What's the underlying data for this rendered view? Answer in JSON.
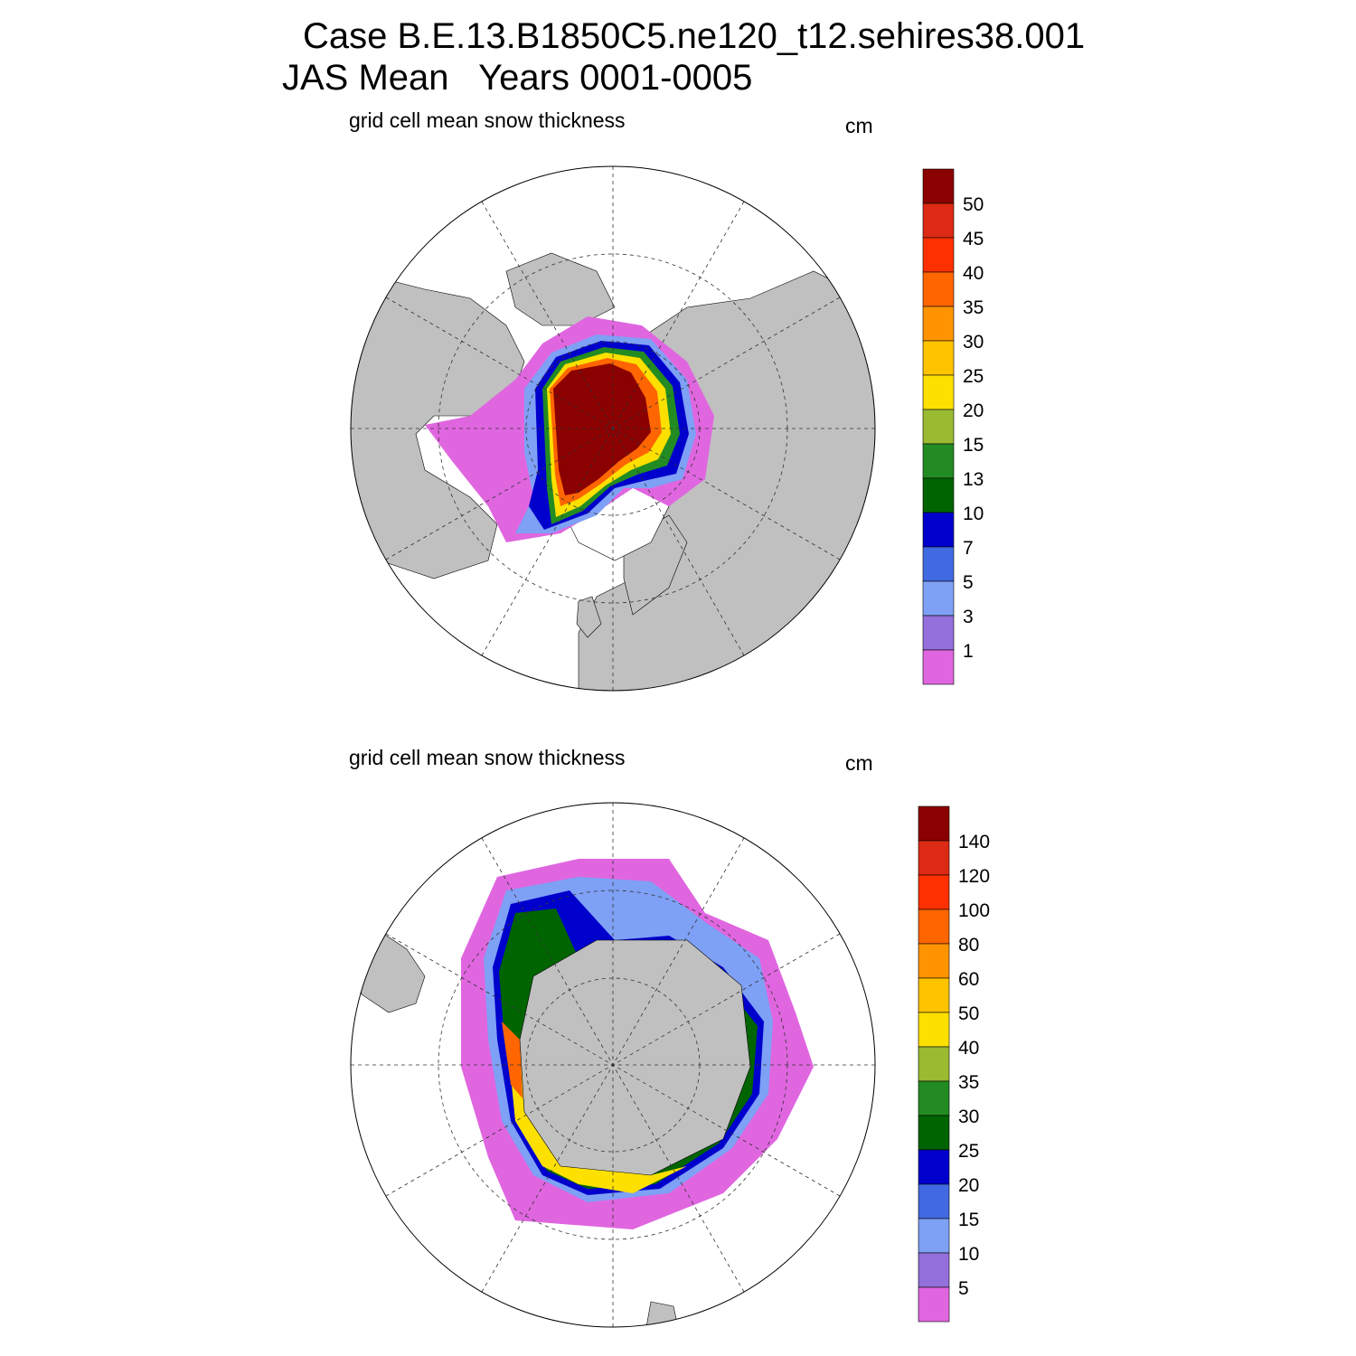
{
  "title": {
    "line1": "Case B.E.13.B1850C5.ne120_t12.sehires38.001",
    "line2": "JAS Mean   Years 0001-0005"
  },
  "colors": {
    "land": "#c0c0c0",
    "ocean": "#ffffff",
    "palette": [
      "#e066e0",
      "#9370db",
      "#7ea0f5",
      "#4169e1",
      "#0000cd",
      "#006400",
      "#228b22",
      "#9aba32",
      "#fde000",
      "#ffc300",
      "#ff9400",
      "#ff6500",
      "#ff3000",
      "#dc2a14",
      "#8b0000"
    ]
  },
  "panels": [
    {
      "name": "arctic",
      "title": "grid cell mean snow thickness",
      "units": "cm",
      "colorbar_labels": [
        "1",
        "3",
        "5",
        "7",
        "10",
        "13",
        "15",
        "20",
        "25",
        "30",
        "35",
        "40",
        "45",
        "50"
      ]
    },
    {
      "name": "antarctic",
      "title": "grid cell mean snow thickness",
      "units": "cm",
      "colorbar_labels": [
        "5",
        "10",
        "15",
        "20",
        "25",
        "30",
        "35",
        "40",
        "50",
        "60",
        "80",
        "100",
        "120",
        "140"
      ]
    }
  ]
}
